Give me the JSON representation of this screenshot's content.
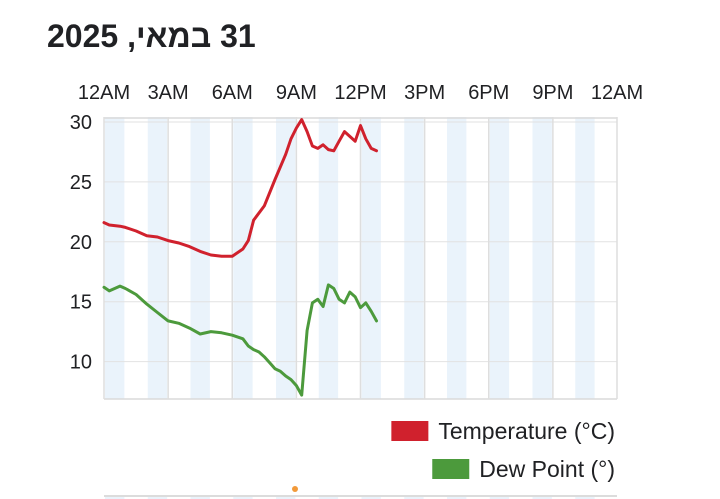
{
  "header": {
    "title": "31 במאי, 2025"
  },
  "chart_data": {
    "type": "line",
    "x_ticks": [
      "12AM",
      "3AM",
      "6AM",
      "9AM",
      "12PM",
      "3PM",
      "6PM",
      "9PM",
      "12AM"
    ],
    "x_range_hours": [
      0,
      24
    ],
    "y_ticks": [
      30,
      25,
      20,
      15,
      10
    ],
    "ylim": [
      7,
      30.5
    ],
    "grid": true,
    "legend_position": "bottom-right",
    "series": [
      {
        "name": "Temperature (°C)",
        "color": "#d0212d",
        "x": [
          0,
          0.25,
          0.75,
          1.0,
          1.5,
          2.0,
          2.5,
          3.0,
          3.5,
          4.0,
          4.5,
          5.0,
          5.5,
          6.0,
          6.5,
          6.75,
          7.0,
          7.5,
          8.0,
          8.5,
          8.75,
          9.0,
          9.25,
          9.5,
          9.75,
          10.0,
          10.25,
          10.5,
          10.75,
          11.0,
          11.25,
          11.5,
          11.75,
          12.0,
          12.25,
          12.5,
          12.75
        ],
        "values": [
          21.6,
          21.4,
          21.3,
          21.2,
          20.9,
          20.5,
          20.4,
          20.1,
          19.9,
          19.6,
          19.2,
          18.9,
          18.8,
          18.8,
          19.4,
          20.1,
          21.8,
          23.0,
          25.2,
          27.3,
          28.6,
          29.5,
          30.2,
          29.2,
          28.0,
          27.8,
          28.1,
          27.7,
          27.6,
          28.4,
          29.2,
          28.8,
          28.4,
          29.7,
          28.6,
          27.8,
          27.6
        ]
      },
      {
        "name": "Dew Point (°)",
        "color": "#4c9a3c",
        "x": [
          0,
          0.25,
          0.75,
          1.0,
          1.5,
          2.0,
          2.5,
          3.0,
          3.5,
          4.0,
          4.5,
          5.0,
          5.5,
          6.0,
          6.5,
          6.75,
          7.0,
          7.25,
          7.5,
          7.75,
          8.0,
          8.25,
          8.5,
          8.75,
          9.0,
          9.25,
          9.5,
          9.75,
          10.0,
          10.25,
          10.5,
          10.75,
          11.0,
          11.25,
          11.5,
          11.75,
          12.0,
          12.25,
          12.5,
          12.75
        ],
        "values": [
          16.2,
          15.9,
          16.3,
          16.1,
          15.6,
          14.8,
          14.1,
          13.4,
          13.2,
          12.8,
          12.3,
          12.5,
          12.4,
          12.2,
          11.9,
          11.3,
          11.0,
          10.8,
          10.4,
          9.9,
          9.4,
          9.2,
          8.8,
          8.5,
          8.0,
          7.2,
          12.6,
          14.9,
          15.2,
          14.6,
          16.4,
          16.1,
          15.2,
          14.9,
          15.8,
          15.4,
          14.5,
          14.9,
          14.2,
          13.4
        ]
      }
    ]
  }
}
